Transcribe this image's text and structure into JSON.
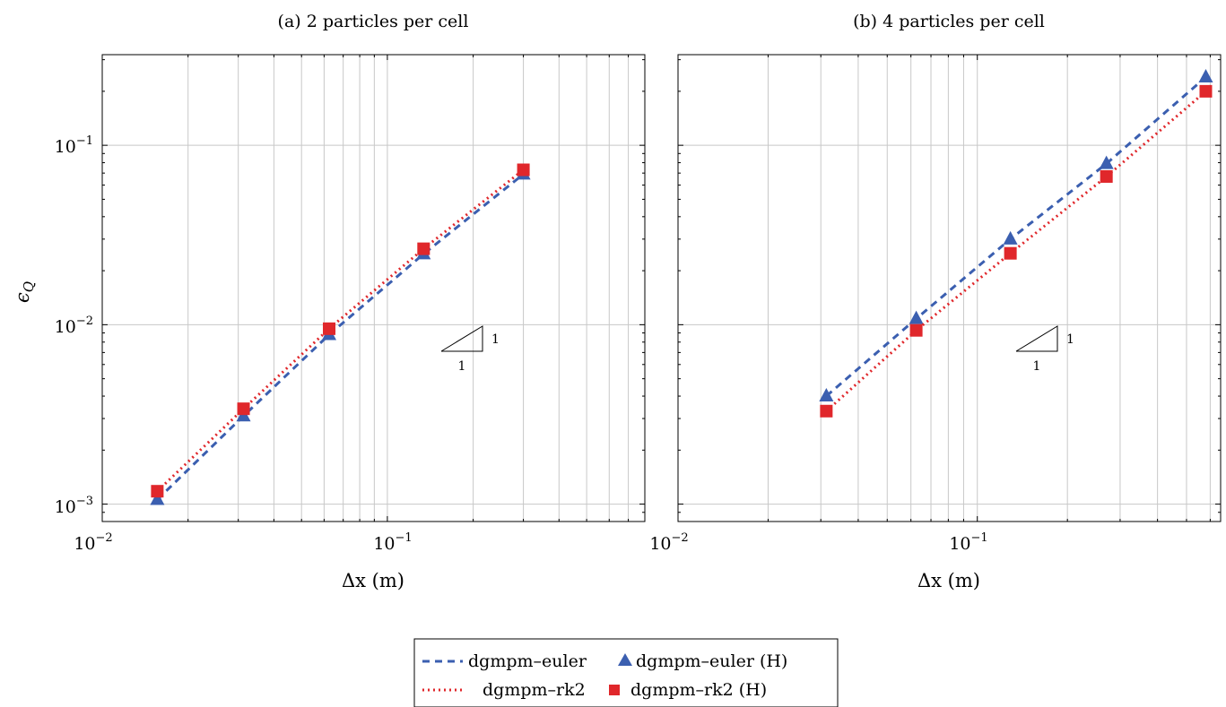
{
  "chart_data": [
    {
      "type": "line",
      "title": "(a) 2 particles per cell",
      "xlabel": "Δx (m)",
      "ylabel": "ϵQ",
      "xscale": "log",
      "yscale": "log",
      "xlim": [
        0.01,
        0.8
      ],
      "ylim": [
        0.0008,
        0.32
      ],
      "grid": true,
      "x_ticks": [
        "10−2",
        "10−1"
      ],
      "y_ticks": [
        "10−1",
        "10−2",
        "10−3"
      ],
      "slope_annotation": {
        "run": "1",
        "rise": "1"
      },
      "series": [
        {
          "name": "dgmpm–euler",
          "style": "dashed",
          "color": "#3b5fb0",
          "x": [
            0.0156,
            0.0313,
            0.0625,
            0.134,
            0.3
          ],
          "y": [
            0.00106,
            0.0031,
            0.0088,
            0.0248,
            0.069
          ]
        },
        {
          "name": "dgmpm–euler (H)",
          "style": "triangle",
          "color": "#3b5fb0",
          "x": [
            0.0156,
            0.0313,
            0.0625,
            0.134,
            0.3
          ],
          "y": [
            0.00106,
            0.0031,
            0.0088,
            0.0248,
            0.069
          ]
        },
        {
          "name": "dgmpm–rk2",
          "style": "dotted",
          "color": "#e0272b",
          "x": [
            0.0156,
            0.0313,
            0.0625,
            0.134,
            0.3
          ],
          "y": [
            0.00118,
            0.0034,
            0.0095,
            0.0265,
            0.073
          ]
        },
        {
          "name": "dgmpm–rk2 (H)",
          "style": "square",
          "color": "#e0272b",
          "x": [
            0.0156,
            0.0313,
            0.0625,
            0.134,
            0.3
          ],
          "y": [
            0.00118,
            0.0034,
            0.0095,
            0.0265,
            0.073
          ]
        }
      ]
    },
    {
      "type": "line",
      "title": "(b) 4 particles per cell",
      "xlabel": "Δx (m)",
      "ylabel": "",
      "xscale": "log",
      "yscale": "log",
      "xlim": [
        0.01,
        0.65
      ],
      "ylim": [
        0.0008,
        0.32
      ],
      "grid": true,
      "x_ticks": [
        "10−2",
        "10−1"
      ],
      "y_ticks": [],
      "slope_annotation": {
        "run": "1",
        "rise": "1"
      },
      "series": [
        {
          "name": "dgmpm–euler",
          "style": "dashed",
          "color": "#3b5fb0",
          "x": [
            0.0313,
            0.0625,
            0.129,
            0.27,
            0.58
          ],
          "y": [
            0.004,
            0.0108,
            0.03,
            0.079,
            0.24
          ]
        },
        {
          "name": "dgmpm–euler (H)",
          "style": "triangle",
          "color": "#3b5fb0",
          "x": [
            0.0313,
            0.0625,
            0.129,
            0.27,
            0.58
          ],
          "y": [
            0.004,
            0.0108,
            0.03,
            0.079,
            0.24
          ]
        },
        {
          "name": "dgmpm–rk2",
          "style": "dotted",
          "color": "#e0272b",
          "x": [
            0.0313,
            0.0625,
            0.129,
            0.27,
            0.58
          ],
          "y": [
            0.0033,
            0.0093,
            0.025,
            0.067,
            0.2
          ]
        },
        {
          "name": "dgmpm–rk2 (H)",
          "style": "square",
          "color": "#e0272b",
          "x": [
            0.0313,
            0.0625,
            0.129,
            0.27,
            0.58
          ],
          "y": [
            0.0033,
            0.0093,
            0.025,
            0.067,
            0.2
          ]
        }
      ]
    }
  ],
  "legend": {
    "position": "bottom-center",
    "entries": [
      {
        "label": "dgmpm–euler",
        "style": "dashed",
        "color": "#3b5fb0"
      },
      {
        "label": "dgmpm–euler (H)",
        "style": "triangle",
        "color": "#3b5fb0"
      },
      {
        "label": "dgmpm–rk2",
        "style": "dotted",
        "color": "#e0272b"
      },
      {
        "label": "dgmpm–rk2 (H)",
        "style": "square",
        "color": "#e0272b"
      }
    ]
  }
}
